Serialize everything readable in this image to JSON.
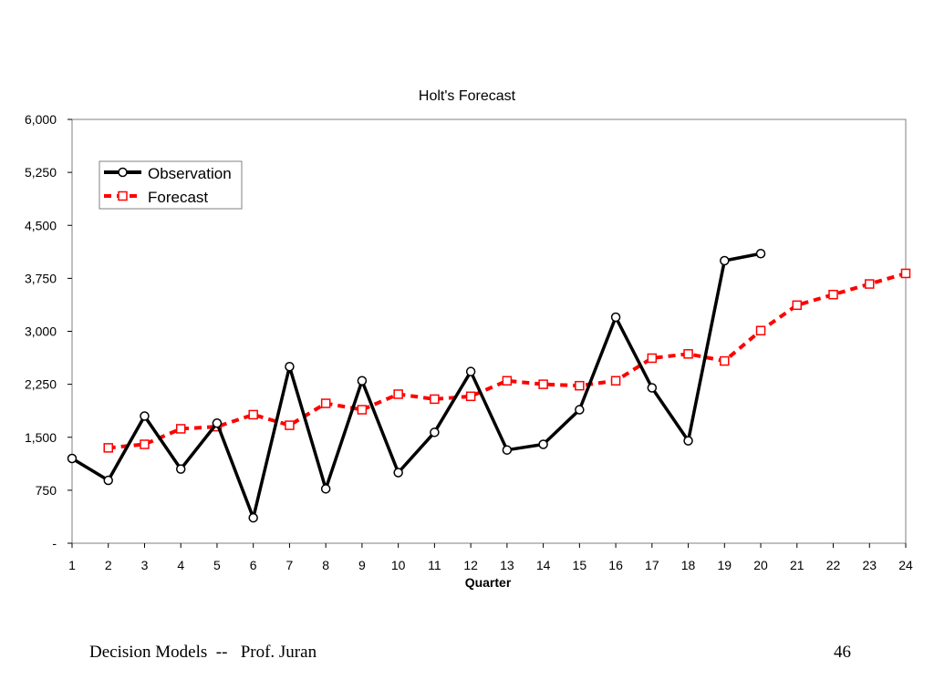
{
  "chart_data": {
    "type": "line",
    "title": "Holt's Forecast",
    "xlabel": "Quarter",
    "ylabel": "",
    "x": [
      1,
      2,
      3,
      4,
      5,
      6,
      7,
      8,
      9,
      10,
      11,
      12,
      13,
      14,
      15,
      16,
      17,
      18,
      19,
      20,
      21,
      22,
      23,
      24
    ],
    "xlim": [
      1,
      24
    ],
    "ylim": [
      0,
      6000
    ],
    "yticks": [
      0,
      750,
      1500,
      2250,
      3000,
      3750,
      4500,
      5250,
      6000
    ],
    "ytick_labels": [
      "-",
      "750",
      "1,500",
      "2,250",
      "3,000",
      "3,750",
      "4,500",
      "5,250",
      "6,000"
    ],
    "grid": false,
    "legend_position": "top-left",
    "series": [
      {
        "name": "Observation",
        "color": "#000000",
        "style": "solid",
        "marker": "circle",
        "values": [
          1200,
          890,
          1800,
          1050,
          1700,
          360,
          2500,
          770,
          2300,
          1000,
          1570,
          2430,
          1320,
          1400,
          1890,
          3200,
          2200,
          1450,
          4000,
          4100,
          null,
          null,
          null,
          null
        ]
      },
      {
        "name": "Forecast",
        "color": "#ff0000",
        "style": "dashed",
        "marker": "square",
        "values": [
          null,
          1350,
          1400,
          1620,
          1650,
          1820,
          1670,
          1980,
          1890,
          2110,
          2040,
          2080,
          2300,
          2250,
          2230,
          2300,
          2620,
          2680,
          2580,
          3010,
          3370,
          3520,
          3670,
          3820
        ]
      }
    ]
  },
  "footer": {
    "left": "Decision Models  --   Prof. Juran",
    "page_number": "46"
  }
}
